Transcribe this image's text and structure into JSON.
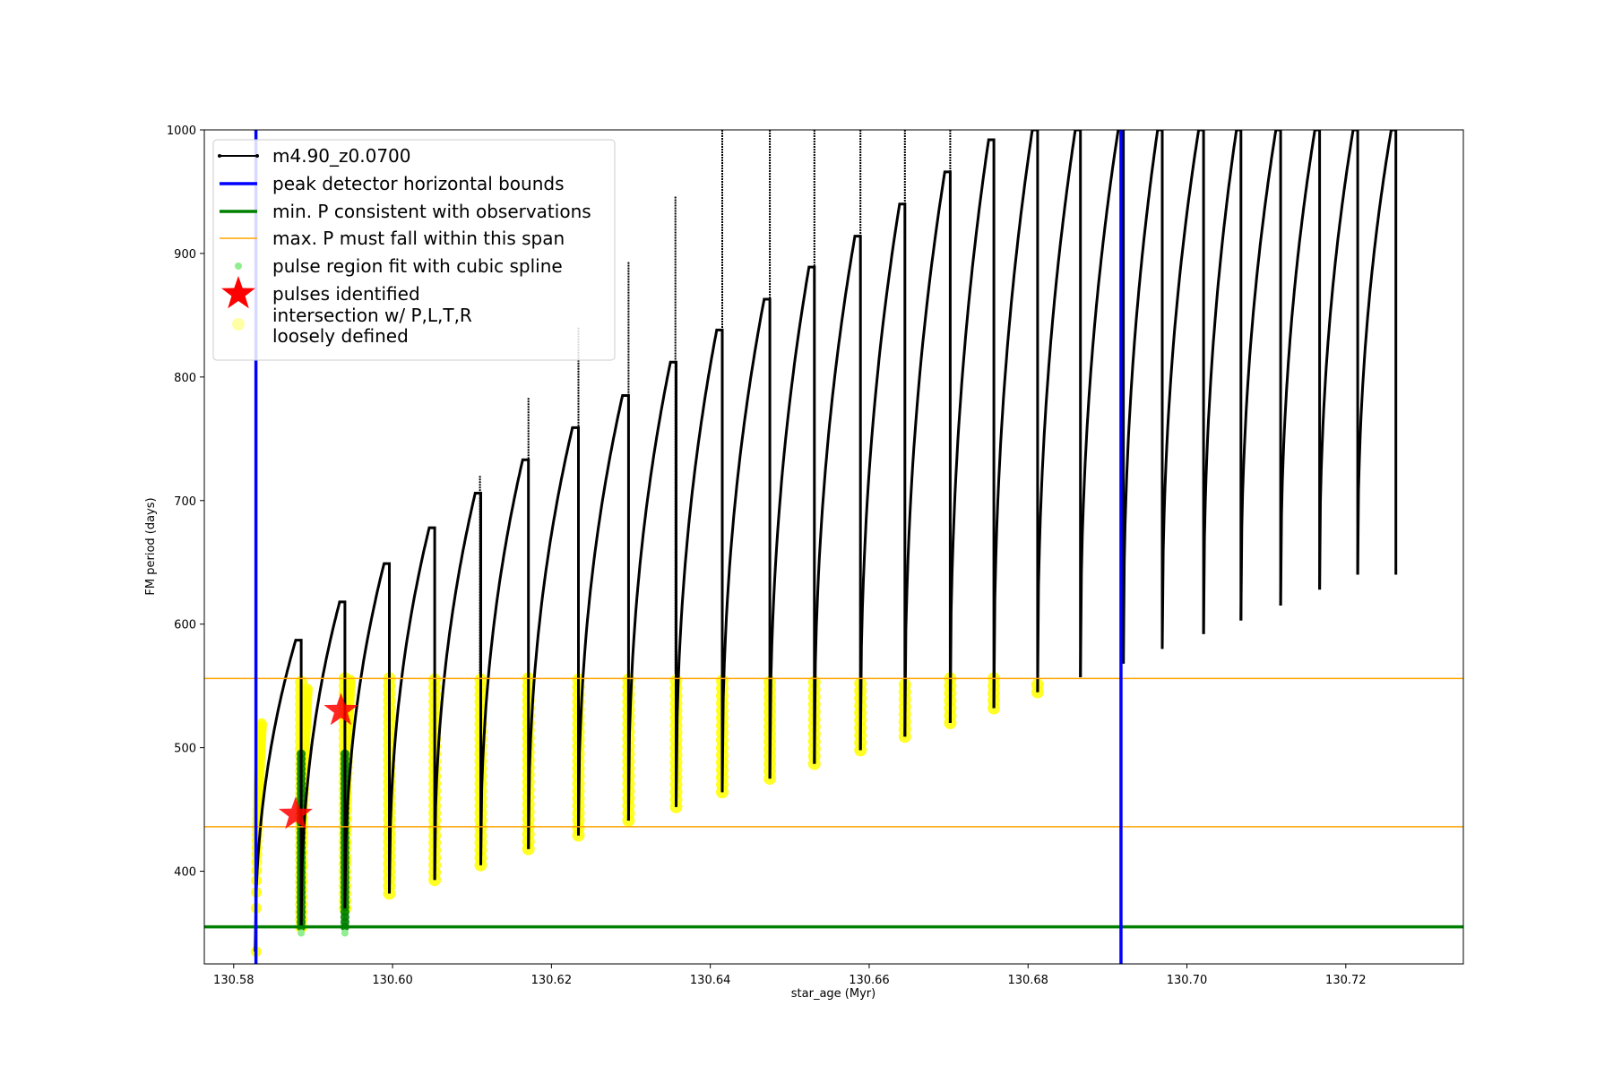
{
  "chart_data": {
    "type": "line",
    "title": "",
    "xlabel": "star_age (Myr)",
    "ylabel": "FM period (days)",
    "xlim": [
      130.5763,
      130.7348
    ],
    "ylim": [
      325,
      1000
    ],
    "x_ticks": [
      130.58,
      130.6,
      130.62,
      130.64,
      130.66,
      130.68,
      130.7,
      130.72
    ],
    "x_tick_labels": [
      "130.58",
      "130.60",
      "130.62",
      "130.64",
      "130.66",
      "130.68",
      "130.70",
      "130.72"
    ],
    "y_ticks": [
      400,
      500,
      600,
      700,
      800,
      900,
      1000
    ],
    "y_tick_labels": [
      "400",
      "500",
      "600",
      "700",
      "800",
      "900",
      "1000"
    ],
    "grid": false,
    "legend_position": "top-left",
    "legend": [
      {
        "key": "track",
        "label": "m4.90_z0.0700"
      },
      {
        "key": "bounds",
        "label": "peak detector horizontal bounds"
      },
      {
        "key": "minp",
        "label": "min. P consistent with observations"
      },
      {
        "key": "maxp",
        "label": "max. P must fall within this span"
      },
      {
        "key": "spline",
        "label": "pulse region fit with cubic spline"
      },
      {
        "key": "pulses",
        "label": "pulses identified"
      },
      {
        "key": "loose",
        "label": "intersection w/ P,L,T,R\nloosely defined"
      }
    ],
    "colors": {
      "track": "#000000",
      "bounds": "#0000ff",
      "minp": "#008000",
      "maxp": "#ffa500",
      "spline": "#90ee90",
      "spline_dark": "#008000",
      "pulses": "#ff0000",
      "loose": "#ffff00"
    },
    "vertical_bounds_x": [
      130.5828,
      130.6917
    ],
    "min_period": 355,
    "max_period_span": [
      436,
      556
    ],
    "pulse_cycles": [
      {
        "start": 130.5827,
        "drop": 130.5885,
        "max_p": 587,
        "min_p": 335
      },
      {
        "start": 130.5885,
        "drop": 130.594,
        "max_p": 618,
        "min_p": 355
      },
      {
        "start": 130.594,
        "drop": 130.5996,
        "max_p": 649,
        "min_p": 370
      },
      {
        "start": 130.5996,
        "drop": 130.6053,
        "max_p": 678,
        "min_p": 382
      },
      {
        "start": 130.6053,
        "drop": 130.6111,
        "max_p": 706,
        "min_p": 393
      },
      {
        "start": 130.6111,
        "drop": 130.6171,
        "max_p": 733,
        "min_p": 405
      },
      {
        "start": 130.6171,
        "drop": 130.6234,
        "max_p": 759,
        "min_p": 418
      },
      {
        "start": 130.6234,
        "drop": 130.6297,
        "max_p": 785,
        "min_p": 429
      },
      {
        "start": 130.6297,
        "drop": 130.6357,
        "max_p": 812,
        "min_p": 441
      },
      {
        "start": 130.6357,
        "drop": 130.6415,
        "max_p": 838,
        "min_p": 452
      },
      {
        "start": 130.6415,
        "drop": 130.6475,
        "max_p": 863,
        "min_p": 464
      },
      {
        "start": 130.6475,
        "drop": 130.6531,
        "max_p": 889,
        "min_p": 475
      },
      {
        "start": 130.6531,
        "drop": 130.6589,
        "max_p": 914,
        "min_p": 487
      },
      {
        "start": 130.6589,
        "drop": 130.6645,
        "max_p": 940,
        "min_p": 498
      },
      {
        "start": 130.6645,
        "drop": 130.6702,
        "max_p": 966,
        "min_p": 509
      },
      {
        "start": 130.6702,
        "drop": 130.6757,
        "max_p": 992,
        "min_p": 520
      },
      {
        "start": 130.6757,
        "drop": 130.6812,
        "max_p": 1000,
        "min_p": 532
      },
      {
        "start": 130.6812,
        "drop": 130.6866,
        "max_p": 1000,
        "min_p": 545
      },
      {
        "start": 130.6866,
        "drop": 130.692,
        "max_p": 1000,
        "min_p": 557
      },
      {
        "start": 130.692,
        "drop": 130.6969,
        "max_p": 1000,
        "min_p": 568
      },
      {
        "start": 130.6969,
        "drop": 130.7021,
        "max_p": 1000,
        "min_p": 580
      },
      {
        "start": 130.7021,
        "drop": 130.7068,
        "max_p": 1000,
        "min_p": 592
      },
      {
        "start": 130.7068,
        "drop": 130.7118,
        "max_p": 1000,
        "min_p": 603
      },
      {
        "start": 130.7118,
        "drop": 130.7167,
        "max_p": 1000,
        "min_p": 615
      },
      {
        "start": 130.7167,
        "drop": 130.7215,
        "max_p": 1000,
        "min_p": 628
      },
      {
        "start": 130.7215,
        "drop": 130.7263,
        "max_p": 1000,
        "min_p": 640
      }
    ],
    "spikes": [
      {
        "x": 130.611,
        "y": 720
      },
      {
        "x": 130.6171,
        "y": 783
      },
      {
        "x": 130.6234,
        "y": 840
      },
      {
        "x": 130.6297,
        "y": 893
      },
      {
        "x": 130.6356,
        "y": 946
      },
      {
        "x": 130.6415,
        "y": 1000
      },
      {
        "x": 130.6475,
        "y": 1000
      },
      {
        "x": 130.6531,
        "y": 1000
      },
      {
        "x": 130.6589,
        "y": 1000
      },
      {
        "x": 130.6645,
        "y": 1000
      },
      {
        "x": 130.6702,
        "y": 1000
      }
    ],
    "pulses_identified": [
      {
        "x": 130.5878,
        "y": 446
      },
      {
        "x": 130.5935,
        "y": 530
      }
    ]
  }
}
